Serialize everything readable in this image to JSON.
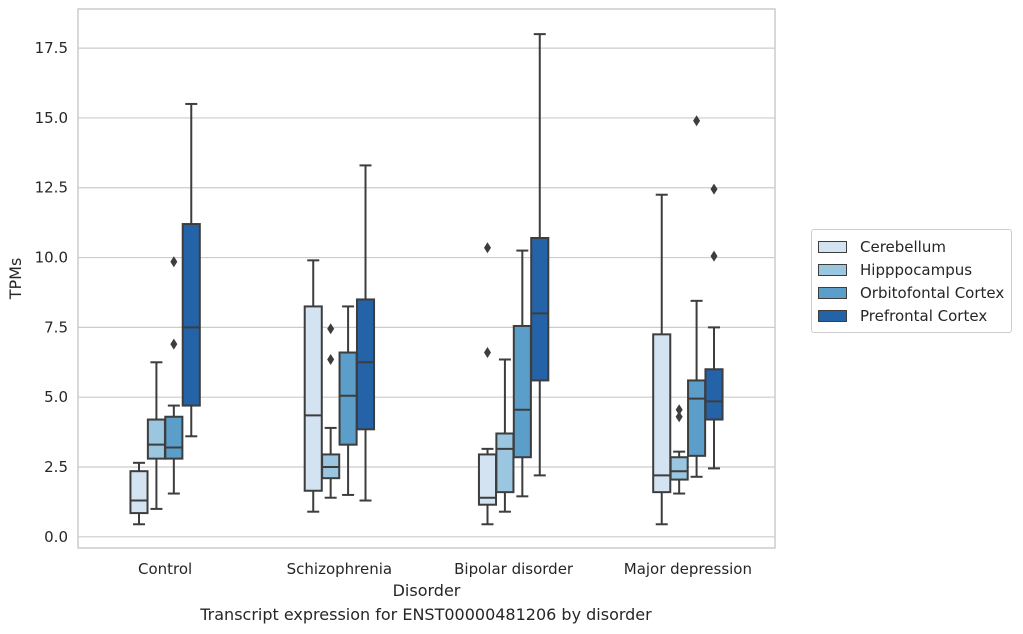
{
  "chart_data": {
    "type": "box",
    "caption": "Transcript expression for ENST00000481206 by disorder",
    "xlabel": "Disorder",
    "ylabel": "TPMs",
    "ylim": [
      -0.4,
      18.9
    ],
    "yticks": [
      "0.0",
      "2.5",
      "5.0",
      "7.5",
      "10.0",
      "12.5",
      "15.0",
      "17.5"
    ],
    "ytick_values": [
      0,
      2.5,
      5,
      7.5,
      10,
      12.5,
      15,
      17.5
    ],
    "categories": [
      "Control",
      "Schizophrenia",
      "Bipolar disorder",
      "Major depression"
    ],
    "grid": "horizontal",
    "legend_position": "right",
    "series": [
      {
        "name": "Cerebellum",
        "color": "#d4e3f2",
        "boxes": [
          {
            "whislo": 0.45,
            "q1": 0.85,
            "med": 1.3,
            "q3": 2.35,
            "whishi": 2.65,
            "fliers": []
          },
          {
            "whislo": 0.9,
            "q1": 1.65,
            "med": 4.35,
            "q3": 8.25,
            "whishi": 9.9,
            "fliers": []
          },
          {
            "whislo": 0.45,
            "q1": 1.15,
            "med": 1.4,
            "q3": 2.95,
            "whishi": 3.15,
            "fliers": [
              10.35,
              6.6
            ]
          },
          {
            "whislo": 0.45,
            "q1": 1.6,
            "med": 2.2,
            "q3": 7.25,
            "whishi": 12.25,
            "fliers": []
          }
        ]
      },
      {
        "name": "Hipppocampus",
        "color": "#9ac6df",
        "boxes": [
          {
            "whislo": 1.0,
            "q1": 2.8,
            "med": 3.3,
            "q3": 4.2,
            "whishi": 6.25,
            "fliers": []
          },
          {
            "whislo": 1.4,
            "q1": 2.1,
            "med": 2.5,
            "q3": 2.95,
            "whishi": 3.9,
            "fliers": [
              7.45,
              6.35
            ]
          },
          {
            "whislo": 0.9,
            "q1": 1.6,
            "med": 3.15,
            "q3": 3.7,
            "whishi": 6.35,
            "fliers": []
          },
          {
            "whislo": 1.55,
            "q1": 2.05,
            "med": 2.35,
            "q3": 2.85,
            "whishi": 3.05,
            "fliers": [
              4.55,
              4.3
            ]
          }
        ]
      },
      {
        "name": "Orbitofontal Cortex",
        "color": "#5a9ec9",
        "boxes": [
          {
            "whislo": 1.55,
            "q1": 2.8,
            "med": 3.2,
            "q3": 4.3,
            "whishi": 4.7,
            "fliers": [
              9.85,
              6.9
            ]
          },
          {
            "whislo": 1.5,
            "q1": 3.3,
            "med": 5.05,
            "q3": 6.6,
            "whishi": 8.25,
            "fliers": []
          },
          {
            "whislo": 1.45,
            "q1": 2.85,
            "med": 4.55,
            "q3": 7.55,
            "whishi": 10.25,
            "fliers": []
          },
          {
            "whislo": 2.15,
            "q1": 2.9,
            "med": 4.95,
            "q3": 5.6,
            "whishi": 8.45,
            "fliers": [
              14.9
            ]
          }
        ]
      },
      {
        "name": "Prefrontal Cortex",
        "color": "#2563a8",
        "boxes": [
          {
            "whislo": 3.6,
            "q1": 4.7,
            "med": 7.5,
            "q3": 11.2,
            "whishi": 15.5,
            "fliers": []
          },
          {
            "whislo": 1.3,
            "q1": 3.85,
            "med": 6.25,
            "q3": 8.5,
            "whishi": 13.3,
            "fliers": []
          },
          {
            "whislo": 2.2,
            "q1": 5.6,
            "med": 8.0,
            "q3": 10.7,
            "whishi": 18.0,
            "fliers": []
          },
          {
            "whislo": 2.45,
            "q1": 4.2,
            "med": 4.85,
            "q3": 6.0,
            "whishi": 7.5,
            "fliers": [
              12.45,
              10.05
            ]
          }
        ]
      }
    ]
  }
}
